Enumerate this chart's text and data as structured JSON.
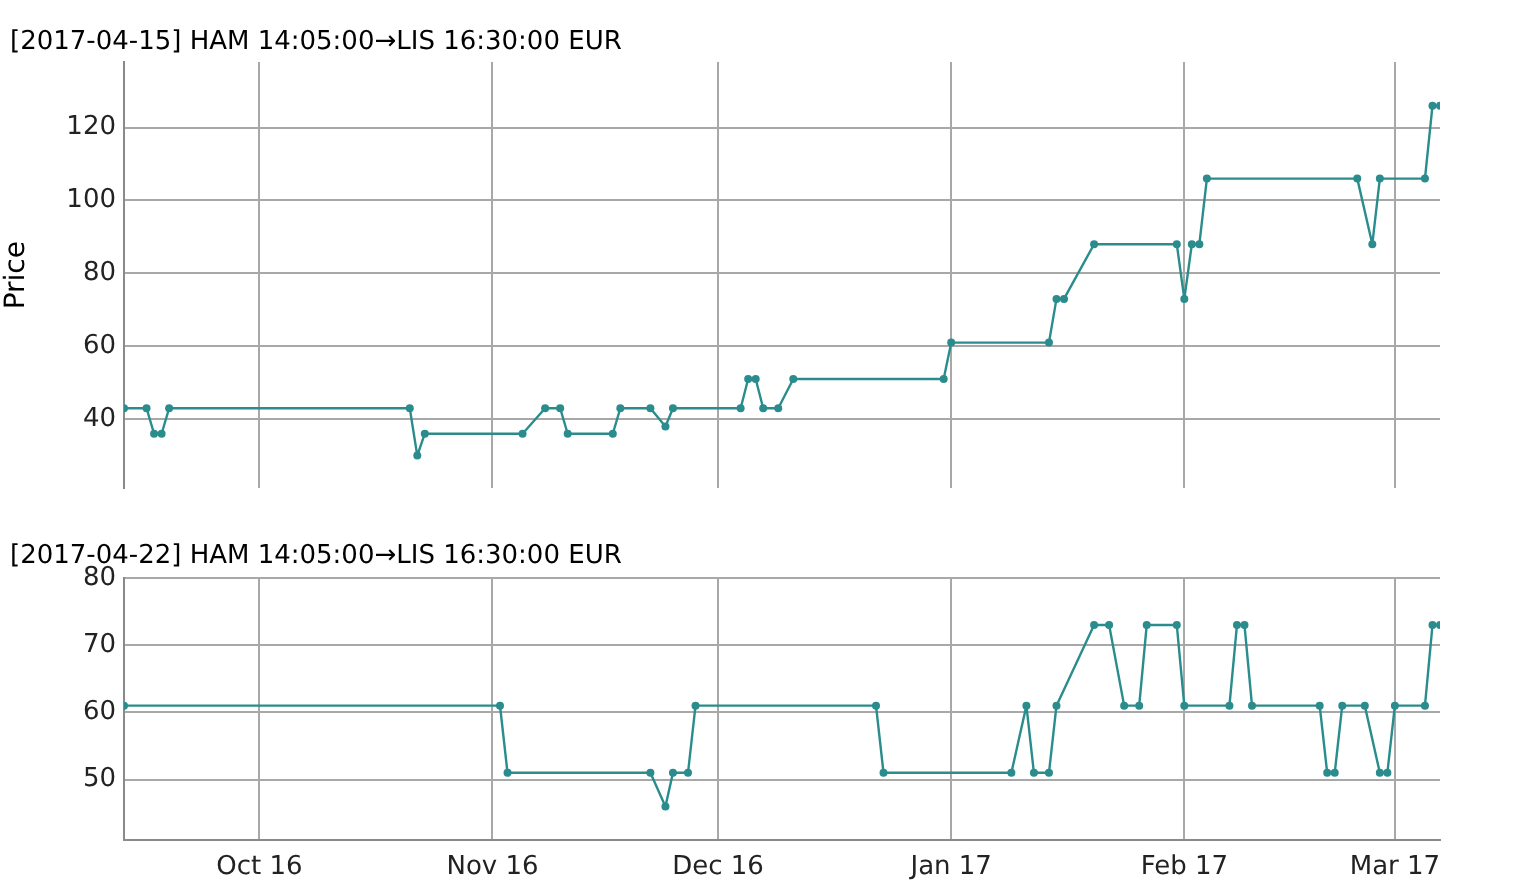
{
  "chart_data": [
    {
      "type": "line",
      "title": "[2017-04-15] HAM 14:05:00→LIS 16:30:00 EUR",
      "ylabel": "Price",
      "color": "#2a8c8c",
      "marker": "circle",
      "grid": true,
      "tick_labels": "y",
      "x": [
        "2016-09-13",
        "2016-09-16",
        "2016-09-17",
        "2016-09-18",
        "2016-09-19",
        "2016-10-21",
        "2016-10-22",
        "2016-10-23",
        "2016-11-05",
        "2016-11-08",
        "2016-11-10",
        "2016-11-11",
        "2016-11-17",
        "2016-11-18",
        "2016-11-22",
        "2016-11-24",
        "2016-11-25",
        "2016-12-04",
        "2016-12-05",
        "2016-12-06",
        "2016-12-07",
        "2016-12-09",
        "2016-12-11",
        "2016-12-31",
        "2017-01-01",
        "2017-01-14",
        "2017-01-15",
        "2017-01-16",
        "2017-01-20",
        "2017-01-31",
        "2017-02-01",
        "2017-02-02",
        "2017-02-03",
        "2017-02-04",
        "2017-02-24",
        "2017-02-26",
        "2017-02-27",
        "2017-03-05",
        "2017-03-06",
        "2017-03-07"
      ],
      "values": [
        43,
        43,
        36,
        36,
        43,
        43,
        30,
        36,
        36,
        43,
        43,
        36,
        36,
        43,
        43,
        38,
        43,
        43,
        51,
        51,
        43,
        43,
        51,
        51,
        61,
        61,
        73,
        73,
        88,
        88,
        73,
        88,
        88,
        106,
        106,
        88,
        106,
        106,
        126,
        126
      ],
      "xlim": [
        "2016-09-13",
        "2017-03-07"
      ],
      "xticks": [
        {
          "value": "2016-10-01",
          "label": null
        },
        {
          "value": "2016-11-01",
          "label": null
        },
        {
          "value": "2016-12-01",
          "label": null
        },
        {
          "value": "2017-01-01",
          "label": null
        },
        {
          "value": "2017-02-01",
          "label": null
        },
        {
          "value": "2017-03-01",
          "label": null
        }
      ],
      "ylim": [
        21,
        138
      ],
      "yticks": [
        40,
        60,
        80,
        100,
        120
      ]
    },
    {
      "type": "line",
      "title": "[2017-04-22] HAM 14:05:00→LIS 16:30:00 EUR",
      "color": "#2a8c8c",
      "marker": "circle",
      "grid": true,
      "x": [
        "2016-09-13",
        "2016-11-02",
        "2016-11-03",
        "2016-11-22",
        "2016-11-24",
        "2016-11-25",
        "2016-11-27",
        "2016-11-28",
        "2016-12-22",
        "2016-12-23",
        "2017-01-09",
        "2017-01-11",
        "2017-01-12",
        "2017-01-14",
        "2017-01-15",
        "2017-01-20",
        "2017-01-22",
        "2017-01-24",
        "2017-01-26",
        "2017-01-27",
        "2017-01-31",
        "2017-02-01",
        "2017-02-07",
        "2017-02-08",
        "2017-02-09",
        "2017-02-10",
        "2017-02-19",
        "2017-02-20",
        "2017-02-21",
        "2017-02-22",
        "2017-02-25",
        "2017-02-27",
        "2017-02-28",
        "2017-03-01",
        "2017-03-05",
        "2017-03-06",
        "2017-03-07"
      ],
      "values": [
        61,
        61,
        51,
        51,
        46,
        51,
        51,
        61,
        61,
        51,
        51,
        61,
        51,
        51,
        61,
        73,
        73,
        61,
        61,
        73,
        73,
        61,
        61,
        73,
        73,
        61,
        61,
        51,
        51,
        61,
        61,
        51,
        51,
        61,
        61,
        73,
        73
      ],
      "xlim": [
        "2016-09-13",
        "2017-03-07"
      ],
      "xticks": [
        {
          "value": "2016-10-01",
          "label": "Oct 16"
        },
        {
          "value": "2016-11-01",
          "label": "Nov 16"
        },
        {
          "value": "2016-12-01",
          "label": "Dec 16"
        },
        {
          "value": "2017-01-01",
          "label": "Jan 17"
        },
        {
          "value": "2017-02-01",
          "label": "Feb 17"
        },
        {
          "value": "2017-03-01",
          "label": "Mar 17"
        }
      ],
      "ylim": [
        41,
        80
      ],
      "yticks": [
        50,
        60,
        70,
        80
      ]
    }
  ]
}
